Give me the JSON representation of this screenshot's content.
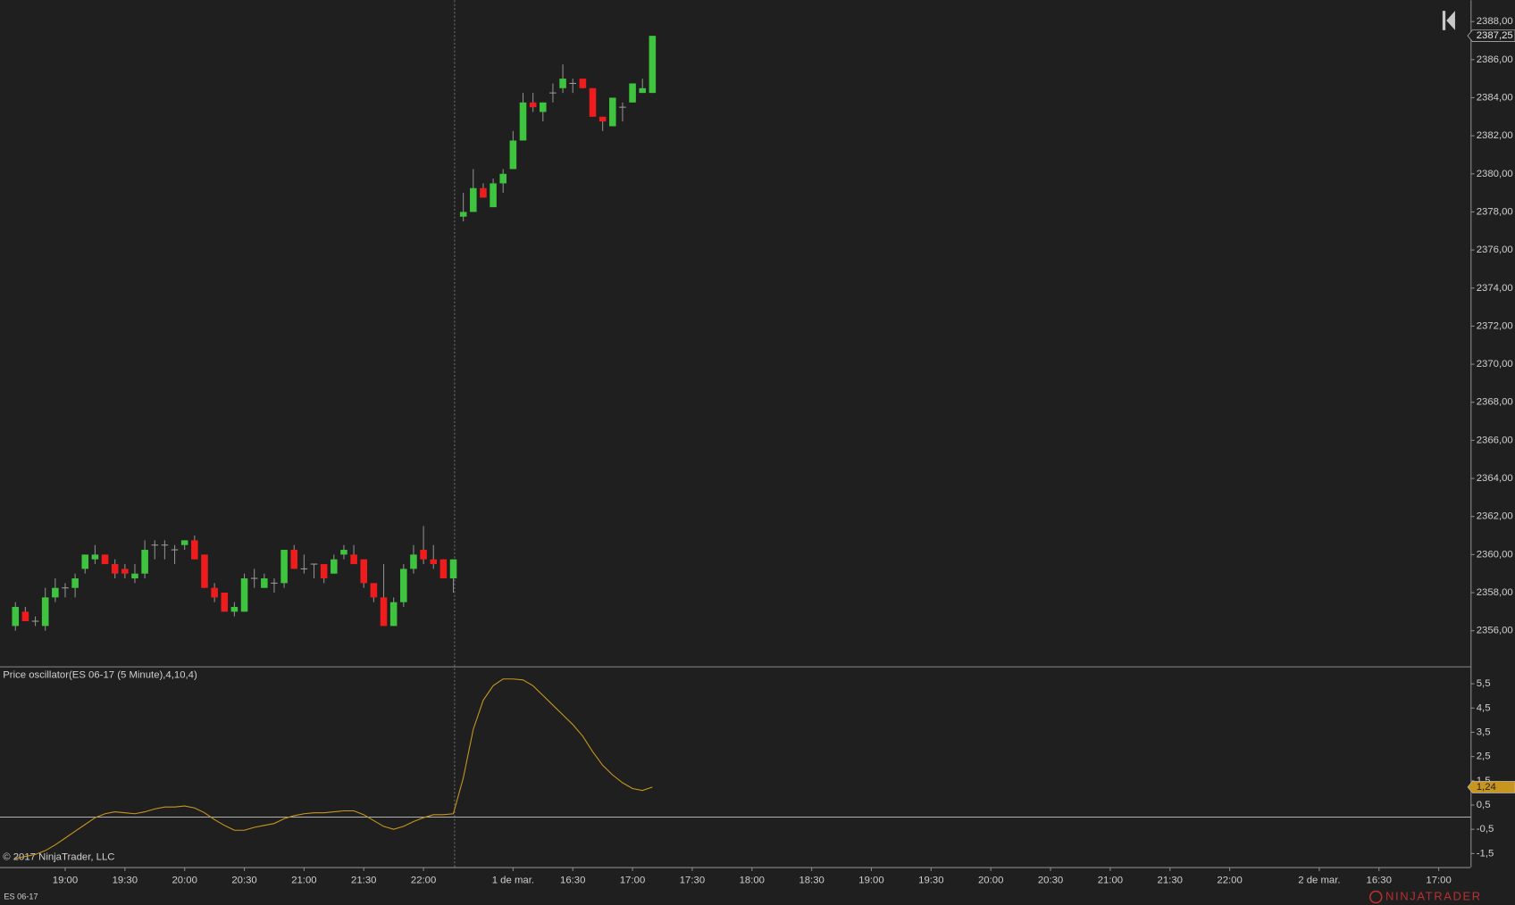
{
  "chart_data": [
    {
      "type": "candlestick",
      "open": [
        2356.25,
        2357,
        2356.5,
        2356.25,
        2357.75,
        2358.25,
        2358.25,
        2359.25,
        2359.75,
        2360,
        2359.5,
        2359.25,
        2358.75,
        2359,
        2360.5,
        2360.5,
        2360.25,
        2360.5,
        2360.75,
        2360,
        2358.25,
        2358,
        2357,
        2357,
        2358.75,
        2358.25,
        2358.5,
        2358.5,
        2360.25,
        2359.25,
        2359.5,
        2359.5,
        2359,
        2360,
        2360,
        2359.75,
        2358.5,
        2357.75,
        2356.25,
        2357.5,
        2359.25,
        2360.25,
        2359.75,
        2359.75,
        2358.75,
        2377.75,
        2378,
        2379.25,
        2378.25,
        2379.5,
        2380.25,
        2381.75,
        2383.75,
        2383.25,
        2384.25,
        2384.5,
        2384.75,
        2385,
        2384.5,
        2383,
        2382.5,
        2383.5,
        2383.75,
        2384.25,
        2384.25
      ],
      "high": [
        2357.5,
        2357.25,
        2356.75,
        2358.25,
        2358.75,
        2358.5,
        2359,
        2360,
        2360.5,
        2360,
        2359.75,
        2359.5,
        2359.5,
        2360.75,
        2360.75,
        2360.75,
        2360.5,
        2360.75,
        2361,
        2360,
        2358.5,
        2358,
        2357.5,
        2359,
        2359.25,
        2359,
        2358.75,
        2360.25,
        2360.5,
        2360,
        2359.5,
        2359.5,
        2360,
        2360.5,
        2360.5,
        2359.75,
        2358.5,
        2359.5,
        2357.75,
        2359.5,
        2360.5,
        2361.5,
        2360.5,
        2359.75,
        2359.75,
        2379,
        2380.25,
        2379.5,
        2379.75,
        2380.25,
        2382.25,
        2384.25,
        2384.25,
        2383.75,
        2384.75,
        2385.75,
        2385,
        2385,
        2384.5,
        2383,
        2384,
        2383.75,
        2384.75,
        2385,
        2387.25
      ],
      "low": [
        2356,
        2356.5,
        2356.25,
        2356,
        2357.5,
        2357.75,
        2357.75,
        2359,
        2359.5,
        2359.5,
        2358.75,
        2358.75,
        2358.5,
        2358.75,
        2359.75,
        2359.75,
        2359.5,
        2360.25,
        2359.75,
        2358.25,
        2357.5,
        2357,
        2356.75,
        2357,
        2358.25,
        2358.25,
        2358,
        2358.25,
        2359.25,
        2359,
        2358.75,
        2358.5,
        2359,
        2359.75,
        2359.5,
        2358.25,
        2357.5,
        2356.25,
        2356.25,
        2357.25,
        2359,
        2359.5,
        2359.25,
        2358.75,
        2358,
        2377.5,
        2378,
        2378.75,
        2378.25,
        2379,
        2380.25,
        2381.75,
        2383.25,
        2382.75,
        2383.75,
        2384.25,
        2384.25,
        2384.5,
        2383,
        2382.25,
        2382.5,
        2382.75,
        2383.75,
        2384.25,
        2384.25
      ],
      "close": [
        2357.25,
        2356.5,
        2356.5,
        2357.75,
        2358.25,
        2358.25,
        2358.75,
        2360,
        2360,
        2359.5,
        2359,
        2359,
        2359,
        2360.25,
        2360.5,
        2360.5,
        2360.25,
        2360.75,
        2359.75,
        2358.25,
        2357.75,
        2357,
        2357.25,
        2358.75,
        2358.75,
        2358.75,
        2358.5,
        2360.25,
        2359.25,
        2359.25,
        2359.5,
        2358.75,
        2359.75,
        2360.25,
        2359.5,
        2358.5,
        2357.75,
        2356.25,
        2357.5,
        2359.25,
        2360,
        2359.75,
        2359.5,
        2358.75,
        2359.75,
        2378,
        2379.25,
        2378.75,
        2379.5,
        2380,
        2381.75,
        2383.75,
        2383.5,
        2383.75,
        2384.25,
        2385,
        2384.75,
        2384.5,
        2383,
        2382.75,
        2384,
        2383.5,
        2384.75,
        2384.5,
        2387.25
      ],
      "up_color": "#3ec43e",
      "down_color": "#ee1c1c",
      "doji_color": "#9a9a9a",
      "ylim": [
        2354.13,
        2389.12
      ],
      "yticks": [
        {
          "value": 2356,
          "label": "2356,00"
        },
        {
          "value": 2358,
          "label": "2358,00"
        },
        {
          "value": 2360,
          "label": "2360,00"
        },
        {
          "value": 2362,
          "label": "2362,00"
        },
        {
          "value": 2364,
          "label": "2364,00"
        },
        {
          "value": 2366,
          "label": "2366,00"
        },
        {
          "value": 2368,
          "label": "2368,00"
        },
        {
          "value": 2370,
          "label": "2370,00"
        },
        {
          "value": 2372,
          "label": "2372,00"
        },
        {
          "value": 2374,
          "label": "2374,00"
        },
        {
          "value": 2376,
          "label": "2376,00"
        },
        {
          "value": 2378,
          "label": "2378,00"
        },
        {
          "value": 2380,
          "label": "2380,00"
        },
        {
          "value": 2382,
          "label": "2382,00"
        },
        {
          "value": 2384,
          "label": "2384,00"
        },
        {
          "value": 2386,
          "label": "2386,00"
        },
        {
          "value": 2388,
          "label": "2388,00"
        }
      ],
      "last_price": {
        "value": 2387.25,
        "label": "2387,25"
      }
    },
    {
      "type": "line",
      "title": "Price oscillator(ES 06-17 (5 Minute),4,10,4)",
      "values": [
        -1.7,
        -1.62,
        -1.54,
        -1.38,
        -1.14,
        -0.86,
        -0.58,
        -0.3,
        -0.02,
        0.14,
        0.22,
        0.18,
        0.14,
        0.22,
        0.34,
        0.42,
        0.42,
        0.46,
        0.38,
        0.18,
        -0.1,
        -0.34,
        -0.54,
        -0.54,
        -0.42,
        -0.34,
        -0.26,
        -0.06,
        0.06,
        0.14,
        0.18,
        0.18,
        0.22,
        0.26,
        0.26,
        0.1,
        -0.14,
        -0.38,
        -0.5,
        -0.38,
        -0.18,
        -0.02,
        0.1,
        0.1,
        0.14,
        1.62,
        3.62,
        4.82,
        5.42,
        5.7,
        5.7,
        5.66,
        5.42,
        5.02,
        4.62,
        4.22,
        3.82,
        3.34,
        2.7,
        2.14,
        1.74,
        1.42,
        1.18,
        1.1,
        1.24
      ],
      "color": "#c8961e",
      "ylim": [
        -2.06,
        6.18
      ],
      "yticks": [
        {
          "value": 5.5,
          "label": "5,5"
        },
        {
          "value": 4.5,
          "label": "4,5"
        },
        {
          "value": 3.5,
          "label": "3,5"
        },
        {
          "value": 2.5,
          "label": "2,5"
        },
        {
          "value": 1.5,
          "label": "1,5"
        },
        {
          "value": 0.5,
          "label": "0,5"
        },
        {
          "value": -0.5,
          "label": "-0,5"
        },
        {
          "value": -1.5,
          "label": "-1,5"
        }
      ],
      "zero_line": 0,
      "last_value": {
        "value": 1.24,
        "label": "1,24"
      },
      "xlim": [
        -1.55,
        146.2
      ],
      "xticks": [
        {
          "value": 5,
          "label": "19:00"
        },
        {
          "value": 11,
          "label": "19:30"
        },
        {
          "value": 17,
          "label": "20:00"
        },
        {
          "value": 23,
          "label": "20:30"
        },
        {
          "value": 29,
          "label": "21:00"
        },
        {
          "value": 35,
          "label": "21:30"
        },
        {
          "value": 41,
          "label": "22:00"
        },
        {
          "value": 50,
          "label": "1 de mar."
        },
        {
          "value": 56,
          "label": "16:30"
        },
        {
          "value": 62,
          "label": "17:00"
        },
        {
          "value": 68,
          "label": "17:30"
        },
        {
          "value": 74,
          "label": "18:00"
        },
        {
          "value": 80,
          "label": "18:30"
        },
        {
          "value": 86,
          "label": "19:00"
        },
        {
          "value": 92,
          "label": "19:30"
        },
        {
          "value": 98,
          "label": "20:00"
        },
        {
          "value": 104,
          "label": "20:30"
        },
        {
          "value": 110,
          "label": "21:00"
        },
        {
          "value": 116,
          "label": "21:30"
        },
        {
          "value": 122,
          "label": "22:00"
        },
        {
          "value": 131,
          "label": "2 de mar."
        },
        {
          "value": 137,
          "label": "16:30"
        },
        {
          "value": 143,
          "label": "17:00"
        }
      ]
    }
  ],
  "copyright": "© 2017 NinjaTrader, LLC",
  "instrument": "ES 06-17",
  "brand": "NINJATRADER"
}
